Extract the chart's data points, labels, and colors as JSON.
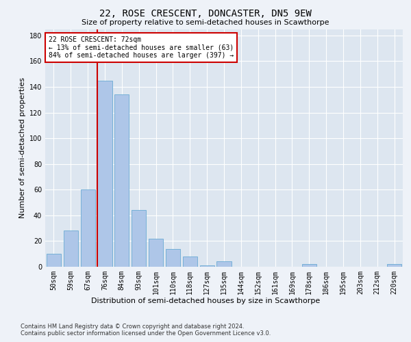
{
  "title": "22, ROSE CRESCENT, DONCASTER, DN5 9EW",
  "subtitle": "Size of property relative to semi-detached houses in Scawthorpe",
  "xlabel": "Distribution of semi-detached houses by size in Scawthorpe",
  "ylabel": "Number of semi-detached properties",
  "categories": [
    "50sqm",
    "59sqm",
    "67sqm",
    "76sqm",
    "84sqm",
    "93sqm",
    "101sqm",
    "110sqm",
    "118sqm",
    "127sqm",
    "135sqm",
    "144sqm",
    "152sqm",
    "161sqm",
    "169sqm",
    "178sqm",
    "186sqm",
    "195sqm",
    "203sqm",
    "212sqm",
    "220sqm"
  ],
  "values": [
    10,
    28,
    60,
    145,
    134,
    44,
    22,
    14,
    8,
    1,
    4,
    0,
    0,
    0,
    0,
    2,
    0,
    0,
    0,
    0,
    2
  ],
  "bar_color": "#aec6e8",
  "bar_edge_color": "#6aaad4",
  "vline_color": "#cc0000",
  "vline_position": 2.575,
  "annotation_box_color": "#cc0000",
  "annotation_title": "22 ROSE CRESCENT: 72sqm",
  "annotation_line1": "← 13% of semi-detached houses are smaller (63)",
  "annotation_line2": "84% of semi-detached houses are larger (397) →",
  "ylim": [
    0,
    185
  ],
  "yticks": [
    0,
    20,
    40,
    60,
    80,
    100,
    120,
    140,
    160,
    180
  ],
  "footnote1": "Contains HM Land Registry data © Crown copyright and database right 2024.",
  "footnote2": "Contains public sector information licensed under the Open Government Licence v3.0.",
  "bg_color": "#eef2f8",
  "plot_bg_color": "#dde6f0",
  "title_fontsize": 10,
  "subtitle_fontsize": 8,
  "ylabel_fontsize": 8,
  "xlabel_fontsize": 8,
  "tick_fontsize": 7,
  "annot_fontsize": 7
}
